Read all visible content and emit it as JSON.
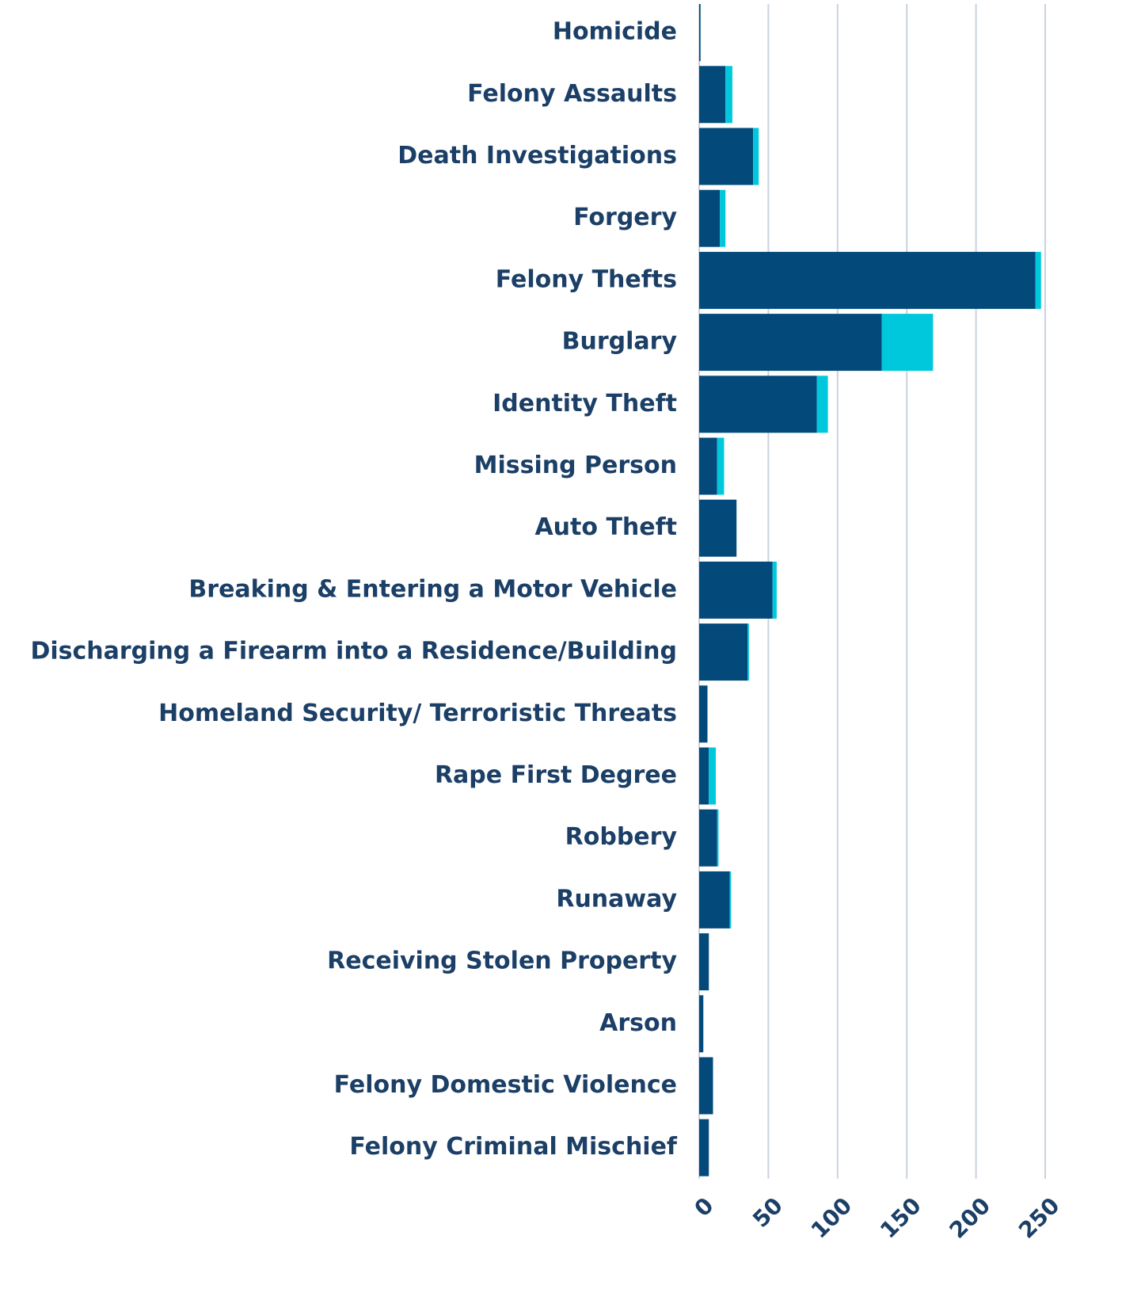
{
  "chart_data": {
    "type": "stacked_barh",
    "categories": [
      "Homicide",
      "Felony Assaults",
      "Death Investigations",
      "Forgery",
      "Felony Thefts",
      "Burglary",
      "Identity Theft",
      "Missing Person",
      "Auto Theft",
      "Breaking & Entering a Motor Vehicle",
      "Discharging a Firearm into a Residence/Building",
      "Homeland Security/ Terroristic Threats",
      "Rape First Degree",
      "Robbery",
      "Runaway",
      "Receiving Stolen Property",
      "Arson",
      "Felony Domestic Violence",
      "Felony Criminal Mischief"
    ],
    "series": [
      {
        "color": "#034a7a",
        "values": [
          1,
          19,
          39,
          15,
          243,
          132,
          85,
          13,
          27,
          53,
          35,
          6,
          7,
          13,
          22,
          7,
          3,
          10,
          7
        ]
      },
      {
        "color": "#00c8dc",
        "values": [
          0,
          5,
          4,
          4,
          4,
          37,
          8,
          5,
          0,
          3,
          1,
          0,
          5,
          1,
          1,
          0,
          0,
          0,
          0
        ]
      }
    ],
    "xlim": [
      0,
      250
    ],
    "xticks": [
      0,
      50,
      100,
      150,
      200,
      250
    ],
    "grid": true
  }
}
